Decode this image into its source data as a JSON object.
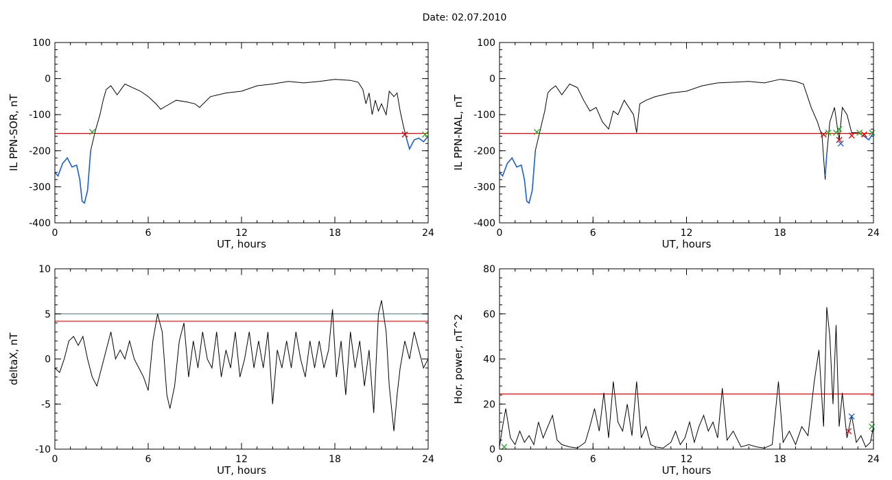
{
  "title": "Date:  02.07.2010",
  "chart_data": [
    {
      "id": "p1",
      "type": "line",
      "xlabel": "UT, hours",
      "ylabel": "IL PPN-SOR, nT",
      "xlim": [
        0,
        24
      ],
      "ylim": [
        -400,
        100
      ],
      "xticks": [
        0,
        6,
        12,
        18,
        24
      ],
      "yticks": [
        -400,
        -300,
        -200,
        -100,
        0,
        100
      ],
      "thresholds": [
        {
          "y": -152,
          "color": "#e00000"
        }
      ],
      "series": [
        {
          "color": "#000000",
          "x": [
            0,
            0.2,
            0.5,
            0.8,
            1.1,
            1.4,
            1.6,
            1.75,
            1.9,
            2.1,
            2.3,
            2.6,
            2.9,
            3.1,
            3.3,
            3.6,
            4.0,
            4.5,
            5.0,
            5.5,
            6.0,
            6.5,
            6.8,
            7.2,
            7.8,
            8.5,
            9.0,
            9.3,
            10,
            11,
            12,
            13,
            14,
            15,
            16,
            17,
            18,
            19,
            19.5,
            19.8,
            20.0,
            20.2,
            20.4,
            20.6,
            20.8,
            21.0,
            21.3,
            21.5,
            21.8,
            22.0,
            22.2,
            22.4,
            22.6,
            22.8,
            23.1,
            23.4,
            23.7,
            24
          ],
          "y": [
            -260,
            -270,
            -235,
            -220,
            -245,
            -240,
            -280,
            -340,
            -345,
            -310,
            -200,
            -145,
            -100,
            -60,
            -30,
            -20,
            -45,
            -15,
            -25,
            -35,
            -50,
            -70,
            -85,
            -75,
            -60,
            -65,
            -70,
            -80,
            -50,
            -40,
            -35,
            -20,
            -15,
            -8,
            -12,
            -8,
            -2,
            -5,
            -10,
            -30,
            -70,
            -40,
            -100,
            -60,
            -90,
            -70,
            -100,
            -35,
            -50,
            -40,
            -90,
            -130,
            -165,
            -195,
            -170,
            -165,
            -175,
            -160
          ]
        },
        {
          "color": "#1a5fd6",
          "x": [
            0,
            0.2,
            0.5,
            0.8,
            1.1,
            1.4,
            1.6,
            1.75,
            1.9,
            2.1,
            2.3,
            22.6,
            22.8,
            23.1,
            23.4,
            23.7,
            24
          ],
          "y": [
            -260,
            -270,
            -235,
            -220,
            -245,
            -240,
            -280,
            -340,
            -345,
            -310,
            -200,
            -165,
            -195,
            -170,
            -165,
            -175,
            -160
          ]
        }
      ],
      "markers": [
        {
          "x": 2.4,
          "y": -148,
          "color": "#22aa22"
        },
        {
          "x": 22.5,
          "y": -155,
          "color": "#e00000"
        },
        {
          "x": 23.8,
          "y": -155,
          "color": "#22aa22"
        }
      ]
    },
    {
      "id": "p2",
      "type": "line",
      "xlabel": "UT, hours",
      "ylabel": "IL PPN-NAL, nT",
      "xlim": [
        0,
        24
      ],
      "ylim": [
        -400,
        100
      ],
      "xticks": [
        0,
        6,
        12,
        18,
        24
      ],
      "yticks": [
        -400,
        -300,
        -200,
        -100,
        0,
        100
      ],
      "thresholds": [
        {
          "y": -152,
          "color": "#e00000"
        }
      ],
      "series": [
        {
          "color": "#000000",
          "x": [
            0,
            0.2,
            0.5,
            0.8,
            1.1,
            1.4,
            1.6,
            1.75,
            1.9,
            2.1,
            2.3,
            2.6,
            2.9,
            3.1,
            3.3,
            3.6,
            4.0,
            4.5,
            5.0,
            5.4,
            5.8,
            6.2,
            6.6,
            7.0,
            7.3,
            7.6,
            8.0,
            8.3,
            8.6,
            8.8,
            9.0,
            9.4,
            10,
            11,
            12,
            13,
            14,
            15,
            16,
            17,
            18,
            19,
            19.5,
            20.0,
            20.4,
            20.7,
            20.9,
            21.0,
            21.2,
            21.5,
            21.8,
            22.0,
            22.3,
            22.6,
            23.0,
            23.4,
            23.7,
            24
          ],
          "y": [
            -260,
            -270,
            -235,
            -220,
            -245,
            -240,
            -280,
            -340,
            -345,
            -310,
            -200,
            -145,
            -90,
            -40,
            -30,
            -20,
            -45,
            -15,
            -25,
            -60,
            -90,
            -80,
            -120,
            -140,
            -90,
            -100,
            -60,
            -80,
            -100,
            -150,
            -70,
            -60,
            -50,
            -40,
            -35,
            -20,
            -12,
            -10,
            -8,
            -12,
            -2,
            -8,
            -15,
            -80,
            -120,
            -160,
            -280,
            -210,
            -120,
            -80,
            -170,
            -80,
            -100,
            -150,
            -150,
            -160,
            -170,
            -150
          ]
        },
        {
          "color": "#1a5fd6",
          "x": [
            0,
            0.2,
            0.5,
            0.8,
            1.1,
            1.4,
            1.6,
            1.75,
            1.9,
            2.1,
            2.3,
            20.9,
            21.0,
            23.4,
            23.7,
            24
          ],
          "y": [
            -260,
            -270,
            -235,
            -220,
            -245,
            -240,
            -280,
            -340,
            -345,
            -310,
            -200,
            -270,
            -210,
            -160,
            -170,
            -150
          ]
        }
      ],
      "markers": [
        {
          "x": 2.4,
          "y": -148,
          "color": "#22aa22"
        },
        {
          "x": 20.8,
          "y": -155,
          "color": "#e00000"
        },
        {
          "x": 21.1,
          "y": -150,
          "color": "#22aa22"
        },
        {
          "x": 21.6,
          "y": -150,
          "color": "#22aa22"
        },
        {
          "x": 21.8,
          "y": -140,
          "color": "#22aa22"
        },
        {
          "x": 21.8,
          "y": -170,
          "color": "#e00000"
        },
        {
          "x": 21.9,
          "y": -180,
          "color": "#1a5fd6"
        },
        {
          "x": 22.6,
          "y": -158,
          "color": "#e00000"
        },
        {
          "x": 23.1,
          "y": -150,
          "color": "#22aa22"
        },
        {
          "x": 23.4,
          "y": -155,
          "color": "#e00000"
        },
        {
          "x": 23.9,
          "y": -150,
          "color": "#22aa22"
        }
      ]
    },
    {
      "id": "p3",
      "type": "line",
      "xlabel": "UT, hours",
      "ylabel": "deltaX, nT",
      "xlim": [
        0,
        24
      ],
      "ylim": [
        -10,
        10
      ],
      "xticks": [
        0,
        6,
        12,
        18,
        24
      ],
      "yticks": [
        -10,
        -5,
        0,
        5,
        10
      ],
      "thresholds": [
        {
          "y": 5.0,
          "color": "#1a8a8a"
        },
        {
          "y": 4.2,
          "color": "#e00000"
        }
      ],
      "series": [
        {
          "color": "#000000",
          "x": [
            0,
            0.3,
            0.6,
            0.9,
            1.2,
            1.5,
            1.8,
            2.1,
            2.4,
            2.7,
            3.0,
            3.3,
            3.6,
            3.9,
            4.2,
            4.5,
            4.8,
            5.1,
            5.4,
            5.7,
            6.0,
            6.3,
            6.6,
            6.9,
            7.2,
            7.4,
            7.7,
            8.0,
            8.3,
            8.6,
            8.9,
            9.2,
            9.5,
            9.8,
            10.1,
            10.4,
            10.7,
            11.0,
            11.3,
            11.6,
            11.9,
            12.2,
            12.5,
            12.8,
            13.1,
            13.4,
            13.7,
            14.0,
            14.3,
            14.6,
            14.9,
            15.2,
            15.5,
            15.8,
            16.1,
            16.4,
            16.7,
            17.0,
            17.3,
            17.6,
            17.85,
            18.1,
            18.4,
            18.7,
            19.0,
            19.3,
            19.6,
            19.9,
            20.2,
            20.5,
            20.8,
            21.0,
            21.3,
            21.5,
            21.8,
            22.0,
            22.2,
            22.5,
            22.8,
            23.1,
            23.4,
            23.7,
            24
          ],
          "y": [
            -1,
            -1.5,
            0,
            2,
            2.5,
            1.5,
            2.5,
            0,
            -2,
            -3,
            -1,
            1,
            3,
            0,
            1,
            0,
            2,
            0,
            -1,
            -2,
            -3.5,
            2,
            5,
            3,
            -4,
            -5.5,
            -3,
            2,
            4,
            -2,
            2,
            -1,
            3,
            0,
            -1,
            3,
            -2,
            1,
            -1,
            3,
            -2,
            0,
            3,
            -1,
            2,
            -1,
            3,
            -5,
            1,
            -1,
            2,
            -1,
            3,
            0,
            -2,
            2,
            -1,
            2,
            -1,
            1,
            5.5,
            -2,
            2,
            -4,
            3,
            -1,
            2,
            -3,
            1,
            -6,
            5,
            6.5,
            3,
            -3,
            -8,
            -4,
            -1,
            2,
            0,
            3,
            1,
            -1,
            0
          ]
        }
      ],
      "markers": []
    },
    {
      "id": "p4",
      "type": "line",
      "xlabel": "UT, hours",
      "ylabel": "Hor. power, nT^2",
      "xlim": [
        0,
        24
      ],
      "ylim": [
        0,
        80
      ],
      "xticks": [
        0,
        6,
        12,
        18,
        24
      ],
      "yticks": [
        0,
        20,
        40,
        60,
        80
      ],
      "thresholds": [
        {
          "y": 24.5,
          "color": "#e00000"
        }
      ],
      "series": [
        {
          "color": "#000000",
          "x": [
            0,
            0.2,
            0.4,
            0.7,
            1.0,
            1.3,
            1.6,
            1.9,
            2.2,
            2.5,
            2.8,
            3.1,
            3.4,
            3.7,
            4.0,
            4.5,
            5.0,
            5.5,
            5.8,
            6.1,
            6.4,
            6.7,
            7.0,
            7.3,
            7.6,
            7.9,
            8.2,
            8.5,
            8.8,
            9.1,
            9.4,
            9.7,
            10.0,
            10.5,
            11.0,
            11.3,
            11.6,
            11.9,
            12.2,
            12.5,
            12.8,
            13.1,
            13.4,
            13.7,
            14.0,
            14.3,
            14.6,
            15.0,
            15.5,
            16.0,
            16.5,
            17.0,
            17.5,
            17.9,
            18.2,
            18.6,
            19.0,
            19.4,
            19.8,
            20.2,
            20.5,
            20.8,
            21.0,
            21.2,
            21.4,
            21.6,
            21.8,
            22.0,
            22.3,
            22.6,
            22.9,
            23.2,
            23.5,
            23.8,
            24
          ],
          "y": [
            1,
            10,
            18,
            5,
            2,
            8,
            3,
            6,
            2,
            12,
            5,
            10,
            15,
            4,
            2,
            1,
            0.5,
            3,
            10,
            18,
            8,
            25,
            5,
            30,
            12,
            8,
            20,
            6,
            30,
            5,
            10,
            2,
            1,
            0.5,
            3,
            8,
            2,
            5,
            12,
            3,
            10,
            15,
            8,
            12,
            5,
            27,
            4,
            8,
            1,
            2,
            1,
            0.5,
            2,
            30,
            3,
            8,
            2,
            10,
            6,
            30,
            44,
            10,
            63,
            50,
            20,
            55,
            10,
            25,
            5,
            15,
            3,
            6,
            1,
            3,
            10
          ]
        }
      ],
      "markers": [
        {
          "x": 0.3,
          "y": 1,
          "color": "#22aa22"
        },
        {
          "x": 22.4,
          "y": 8,
          "color": "#e00000"
        },
        {
          "x": 22.6,
          "y": 14.5,
          "color": "#1a5fd6"
        },
        {
          "x": 23.9,
          "y": 10,
          "color": "#22aa22"
        }
      ]
    }
  ]
}
